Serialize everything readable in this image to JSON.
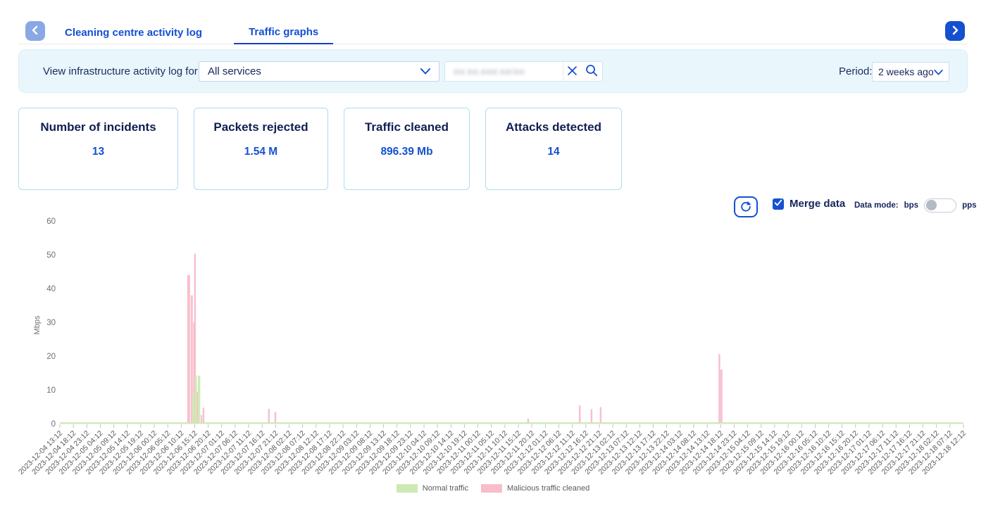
{
  "header": {
    "tabs": [
      {
        "label": "Cleaning centre activity log",
        "active": false
      },
      {
        "label": "Traffic graphs",
        "active": true
      }
    ]
  },
  "filter": {
    "label": "View infrastructure activity log for:",
    "service_value": "All services",
    "search_masked": "●●.●●.●●●.●●/●●",
    "period_label": "Period:",
    "period_value": "2 weeks ago"
  },
  "stats": {
    "cards": [
      {
        "title": "Number of incidents",
        "value": "13"
      },
      {
        "title": "Packets rejected",
        "value": "1.54 M"
      },
      {
        "title": "Traffic cleaned",
        "value": "896.39 Mb"
      },
      {
        "title": "Attacks detected",
        "value": "14"
      }
    ]
  },
  "controls": {
    "merge_label": "Merge data",
    "merge_checked": true,
    "data_mode_label": "Data mode:",
    "bps_label": "bps",
    "pps_label": "pps",
    "data_mode_selected": "bps"
  },
  "theme": {
    "accent_blue": "#1550d2",
    "navy_text": "#16255d",
    "panel_bg": "#e9f6fb",
    "card_border": "#aedcee",
    "prev_button_bg": "#8aa8e5",
    "next_button_bg": "#1450cf"
  },
  "chart_data": {
    "type": "area",
    "title": "",
    "xlabel": "",
    "ylabel": "Mbps",
    "ylim": [
      0,
      60
    ],
    "yticks": [
      0,
      10,
      20,
      30,
      40,
      50,
      60
    ],
    "grid": false,
    "legend_position": "bottom",
    "categories": [
      "2023-12-04 13:12",
      "2023-12-04 18:12",
      "2023-12-04 23:12",
      "2023-12-05 04:12",
      "2023-12-05 09:12",
      "2023-12-05 14:12",
      "2023-12-05 19:12",
      "2023-12-06 00:12",
      "2023-12-06 05:12",
      "2023-12-06 10:12",
      "2023-12-06 15:12",
      "2023-12-06 20:12",
      "2023-12-07 01:12",
      "2023-12-07 06:12",
      "2023-12-07 11:12",
      "2023-12-07 16:12",
      "2023-12-07 21:12",
      "2023-12-08 02:12",
      "2023-12-08 07:12",
      "2023-12-08 12:12",
      "2023-12-08 17:12",
      "2023-12-08 22:12",
      "2023-12-09 03:12",
      "2023-12-09 08:12",
      "2023-12-09 13:12",
      "2023-12-09 18:12",
      "2023-12-09 23:12",
      "2023-12-10 04:12",
      "2023-12-10 09:12",
      "2023-12-10 14:12",
      "2023-12-10 19:12",
      "2023-12-11 00:12",
      "2023-12-11 05:12",
      "2023-12-11 10:12",
      "2023-12-11 15:12",
      "2023-12-11 20:12",
      "2023-12-12 01:12",
      "2023-12-12 06:12",
      "2023-12-12 11:12",
      "2023-12-12 16:12",
      "2023-12-12 21:12",
      "2023-12-13 02:12",
      "2023-12-13 07:12",
      "2023-12-13 12:12",
      "2023-12-13 17:12",
      "2023-12-13 22:12",
      "2023-12-14 03:12",
      "2023-12-14 08:12",
      "2023-12-14 13:12",
      "2023-12-14 18:12",
      "2023-12-14 23:12",
      "2023-12-15 04:12",
      "2023-12-15 09:12",
      "2023-12-15 14:12",
      "2023-12-15 19:12",
      "2023-12-16 00:12",
      "2023-12-16 05:12",
      "2023-12-16 10:12",
      "2023-12-16 15:12",
      "2023-12-16 20:12",
      "2023-12-17 01:12",
      "2023-12-17 06:12",
      "2023-12-17 11:12",
      "2023-12-17 16:12",
      "2023-12-17 21:12",
      "2023-12-18 02:12",
      "2023-12-18 07:12",
      "2023-12-18 12:12"
    ],
    "series": [
      {
        "name": "Normal traffic",
        "color": "#cdeab4",
        "z": 1,
        "baseline_mbps": 0.4,
        "spikes": [
          {
            "at": 9.9,
            "mbps": 8.8,
            "w": 3
          },
          {
            "at": 10.08,
            "mbps": 14.3,
            "w": 3
          },
          {
            "at": 10.32,
            "mbps": 14.2,
            "w": 3.5
          }
        ]
      },
      {
        "name": "Malicious traffic cleaned",
        "color": "#f8bdcb",
        "z": 0,
        "baseline_mbps": 0,
        "spikes": [
          {
            "at": 9.55,
            "mbps": 44,
            "w": 4
          },
          {
            "at": 9.78,
            "mbps": 38,
            "w": 3
          },
          {
            "at": 9.95,
            "mbps": 30,
            "w": 2.5
          },
          {
            "at": 10.02,
            "mbps": 50.3,
            "w": 2.5
          },
          {
            "at": 10.18,
            "mbps": 9.5,
            "w": 4
          },
          {
            "at": 10.5,
            "mbps": 2.5,
            "w": 2
          },
          {
            "at": 10.65,
            "mbps": 4.7,
            "w": 2.5
          },
          {
            "at": 15.5,
            "mbps": 4.4,
            "w": 2.5
          },
          {
            "at": 15.98,
            "mbps": 3.5,
            "w": 2.5
          },
          {
            "at": 34.72,
            "mbps": 1.5,
            "w": 2.5
          },
          {
            "at": 38.55,
            "mbps": 5.4,
            "w": 2.5
          },
          {
            "at": 39.42,
            "mbps": 4.3,
            "w": 2.5
          },
          {
            "at": 40.1,
            "mbps": 4.9,
            "w": 2.5
          },
          {
            "at": 48.9,
            "mbps": 20.6,
            "w": 2.5
          },
          {
            "at": 49.05,
            "mbps": 16,
            "w": 3
          }
        ]
      }
    ]
  }
}
